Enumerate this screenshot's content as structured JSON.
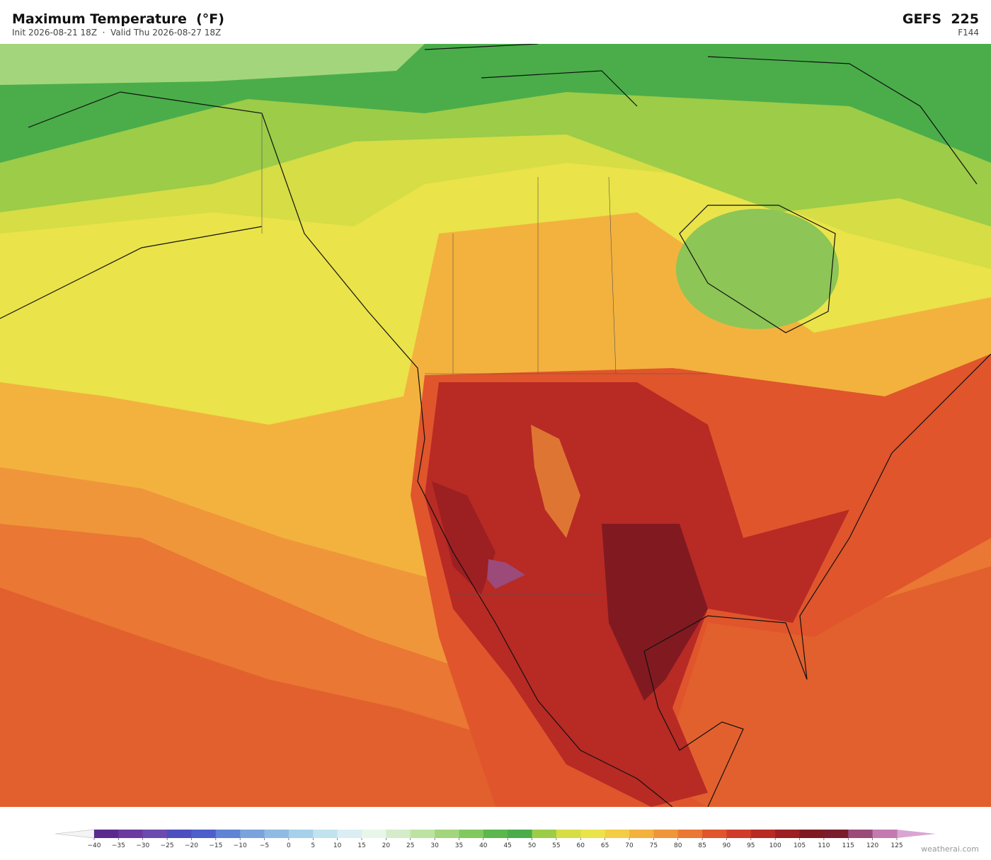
{
  "header": {
    "title": "Maximum Temperature  (°F)",
    "subtitle": "Init 2026-08-21 18Z  ·  Valid Thu 2026-08-27 18Z",
    "model": "GEFS  225",
    "forecast_hour": "F144"
  },
  "colorbar": {
    "ticks": [
      "−40",
      "−35",
      "−30",
      "−25",
      "−20",
      "−15",
      "−10",
      "−5",
      "0",
      "5",
      "10",
      "15",
      "20",
      "25",
      "30",
      "35",
      "40",
      "45",
      "50",
      "55",
      "60",
      "65",
      "70",
      "75",
      "80",
      "85",
      "90",
      "95",
      "100",
      "105",
      "110",
      "115",
      "120",
      "125"
    ],
    "colors": [
      "#5b2a8e",
      "#6a3aa0",
      "#6b4bb0",
      "#4c4fc0",
      "#4e5fcb",
      "#5f84d6",
      "#7aa2dc",
      "#8fbbe2",
      "#a7d0ea",
      "#c3e2ef",
      "#daeef3",
      "#e8f5e9",
      "#d4ecc9",
      "#bde3a2",
      "#a3d67c",
      "#82c95d",
      "#5cb84c",
      "#4aad4a",
      "#9ccc48",
      "#d6dd45",
      "#eae34a",
      "#f4cc45",
      "#f3b23e",
      "#f0963a",
      "#ea7733",
      "#e0552c",
      "#d03c29",
      "#b82a24",
      "#9c1f22",
      "#801a20",
      "#7a1c2c",
      "#9b4a7a",
      "#c27ab0"
    ],
    "under_color": "#f4f4f4",
    "over_color": "#d9a6d4"
  },
  "credit": "weatherai.com"
}
